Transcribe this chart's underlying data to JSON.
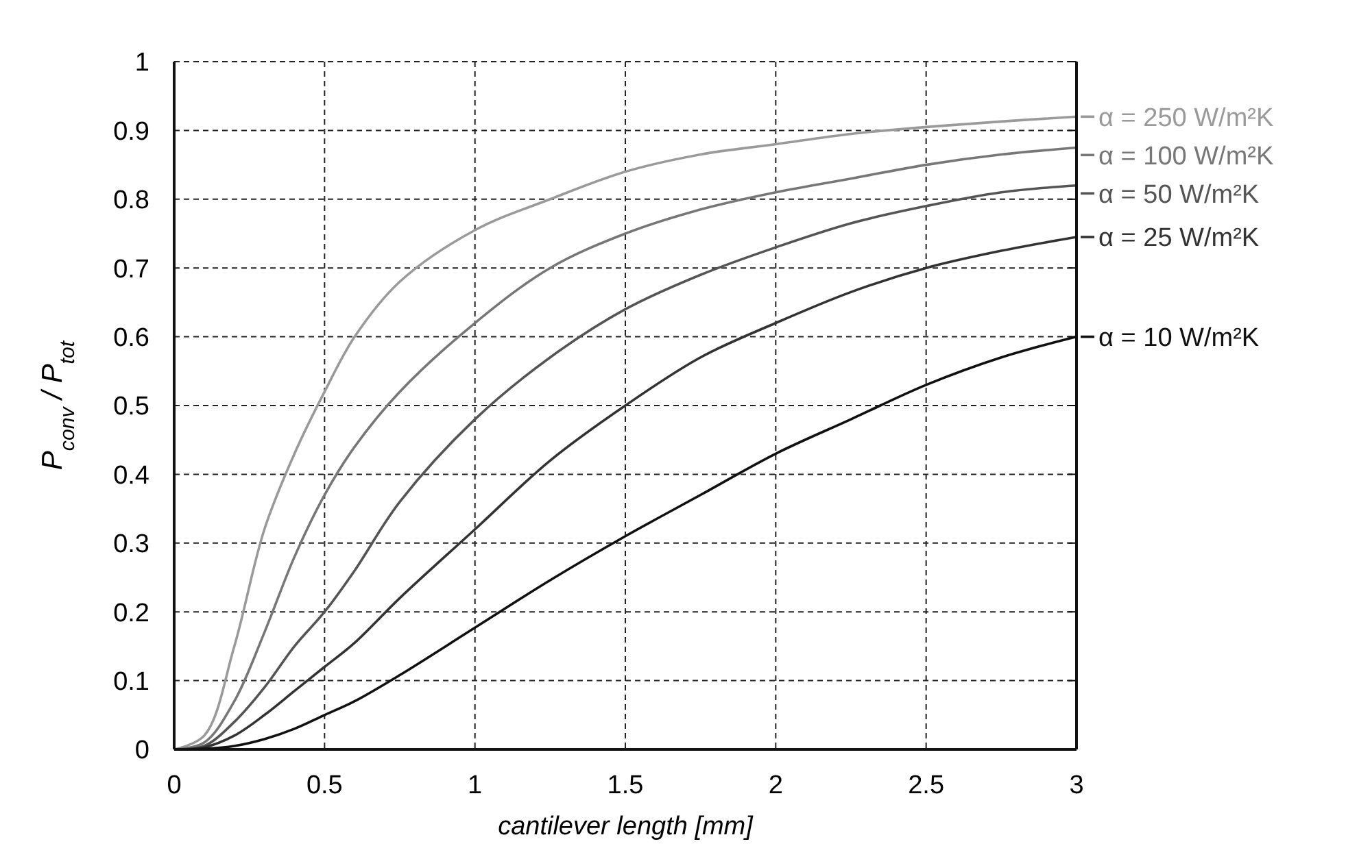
{
  "chart_data": {
    "type": "line",
    "xlabel": "cantilever length [mm]",
    "ylabel": "P$_{conv}$ / P$_{tot}$",
    "xlim": [
      0,
      3
    ],
    "xticks": [
      0,
      0.5,
      1,
      1.5,
      2,
      2.5,
      3
    ],
    "ylim": [
      0,
      1
    ],
    "yticks": [
      0,
      0.1,
      0.2,
      0.3,
      0.4,
      0.5,
      0.6,
      0.7,
      0.8,
      0.9,
      1
    ],
    "grid": true,
    "line_style": "solid",
    "legend": "right",
    "x": [
      0,
      0.1,
      0.2,
      0.3,
      0.4,
      0.5,
      0.6,
      0.75,
      1,
      1.25,
      1.5,
      1.75,
      2,
      2.25,
      2.5,
      2.75,
      3
    ],
    "series": [
      {
        "name": "α = 250 W/m²K",
        "color": "#9a9a9a",
        "values": [
          0,
          0.02,
          0.15,
          0.32,
          0.43,
          0.52,
          0.6,
          0.68,
          0.755,
          0.8,
          0.84,
          0.865,
          0.88,
          0.895,
          0.905,
          0.913,
          0.92
        ]
      },
      {
        "name": "α = 100 W/m²K",
        "color": "#777777",
        "values": [
          0,
          0.01,
          0.07,
          0.17,
          0.28,
          0.37,
          0.44,
          0.52,
          0.62,
          0.7,
          0.75,
          0.785,
          0.81,
          0.83,
          0.85,
          0.865,
          0.875
        ]
      },
      {
        "name": "α = 50 W/m²K",
        "color": "#555555",
        "values": [
          0,
          0.005,
          0.04,
          0.09,
          0.15,
          0.2,
          0.26,
          0.36,
          0.48,
          0.57,
          0.64,
          0.69,
          0.73,
          0.765,
          0.79,
          0.81,
          0.82
        ]
      },
      {
        "name": "α = 25 W/m²K",
        "color": "#333333",
        "values": [
          0,
          0.003,
          0.02,
          0.05,
          0.085,
          0.12,
          0.155,
          0.22,
          0.32,
          0.42,
          0.5,
          0.57,
          0.62,
          0.665,
          0.7,
          0.725,
          0.745
        ]
      },
      {
        "name": "α = 10 W/m²K",
        "color": "#111111",
        "values": [
          0,
          0.001,
          0.005,
          0.015,
          0.03,
          0.05,
          0.07,
          0.108,
          0.177,
          0.246,
          0.31,
          0.37,
          0.43,
          0.48,
          0.53,
          0.57,
          0.6
        ]
      }
    ]
  }
}
